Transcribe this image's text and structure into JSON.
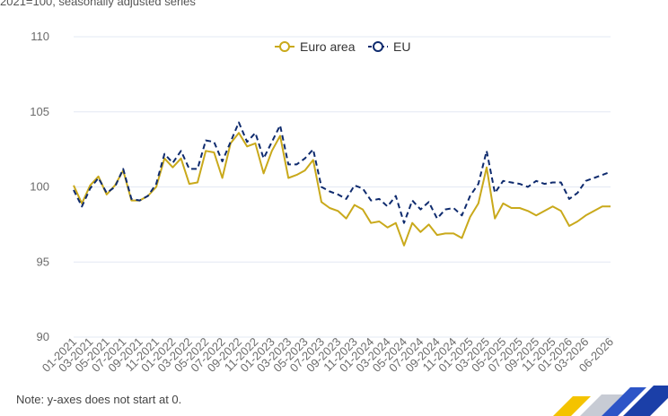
{
  "subtitle": "2021=100, seasonally adjusted series",
  "note": "Note: y-axes does not start at 0.",
  "colors": {
    "euro_area": "#c9a91b",
    "eu": "#0f2b6e",
    "grid": "#e3e8f3"
  },
  "chart_data": {
    "type": "line",
    "title": "",
    "xlabel": "",
    "ylabel": "",
    "ylim": [
      90,
      110
    ],
    "yticks": [
      90,
      95,
      100,
      105,
      110
    ],
    "grid": true,
    "legend_position": "top-center",
    "x": [
      "01-2021",
      "02-2021",
      "03-2021",
      "04-2021",
      "05-2021",
      "06-2021",
      "07-2021",
      "08-2021",
      "09-2021",
      "10-2021",
      "11-2021",
      "12-2021",
      "01-2022",
      "02-2022",
      "03-2022",
      "04-2022",
      "05-2022",
      "06-2022",
      "07-2022",
      "08-2022",
      "09-2022",
      "10-2022",
      "11-2022",
      "12-2022",
      "01-2023",
      "02-2023",
      "03-2023",
      "04-2023",
      "05-2023",
      "06-2023",
      "07-2023",
      "08-2023",
      "09-2023",
      "10-2023",
      "11-2023",
      "12-2023",
      "01-2024",
      "02-2024",
      "03-2024",
      "04-2024",
      "05-2024",
      "06-2024",
      "07-2024",
      "08-2024",
      "09-2024",
      "10-2024",
      "11-2024",
      "12-2024",
      "01-2025",
      "02-2025",
      "03-2025",
      "04-2025",
      "05-2025",
      "06-2025",
      "07-2025",
      "08-2025",
      "09-2025",
      "10-2025",
      "11-2025",
      "12-2025",
      "01-2026",
      "02-2026",
      "03-2026",
      "04-2026",
      "05-2026",
      "06-2026"
    ],
    "xtick_labels": [
      "01-2021",
      "03-2021",
      "05-2021",
      "07-2021",
      "09-2021",
      "11-2021",
      "01-2022",
      "03-2022",
      "05-2022",
      "07-2022",
      "09-2022",
      "11-2022",
      "01-2023",
      "03-2023",
      "05-2023",
      "07-2023",
      "09-2023",
      "11-2023",
      "01-2024",
      "03-2024",
      "05-2024",
      "07-2024",
      "09-2024",
      "11-2024",
      "01-2025",
      "03-2025",
      "05-2025",
      "07-2025",
      "09-2025",
      "11-2025",
      "01-2026",
      "03-2026",
      "06-2026"
    ],
    "series": [
      {
        "name": "Euro area",
        "style": "solid",
        "values": [
          100.1,
          98.9,
          100.1,
          100.7,
          99.5,
          100.1,
          101.1,
          99.1,
          99.1,
          99.4,
          100.0,
          101.9,
          101.3,
          101.9,
          100.2,
          100.3,
          102.4,
          102.3,
          100.6,
          102.9,
          103.6,
          102.7,
          102.9,
          100.9,
          102.4,
          103.4,
          100.6,
          100.8,
          101.1,
          101.8,
          99.0,
          98.6,
          98.4,
          97.9,
          98.8,
          98.5,
          97.6,
          97.7,
          97.3,
          97.6,
          96.1,
          97.6,
          97.0,
          97.5,
          96.8,
          96.9,
          96.9,
          96.6,
          98.0,
          98.9,
          101.3,
          97.9,
          98.9,
          98.6,
          98.6,
          98.4,
          98.1,
          98.4,
          98.7,
          98.4,
          97.4,
          97.7,
          98.1,
          98.4,
          98.7,
          98.7
        ]
      },
      {
        "name": "EU",
        "style": "dashed",
        "values": [
          99.8,
          98.7,
          99.9,
          100.6,
          99.6,
          100.0,
          101.2,
          99.2,
          99.1,
          99.4,
          100.2,
          102.2,
          101.6,
          102.4,
          101.2,
          101.2,
          103.1,
          103.0,
          101.7,
          103.0,
          104.3,
          103.0,
          103.6,
          101.9,
          103.0,
          104.1,
          101.5,
          101.5,
          101.9,
          102.5,
          100.0,
          99.7,
          99.5,
          99.2,
          100.1,
          99.9,
          99.1,
          99.2,
          98.7,
          99.4,
          97.6,
          99.1,
          98.5,
          99.0,
          97.9,
          98.5,
          98.6,
          98.1,
          99.4,
          100.2,
          102.4,
          99.6,
          100.4,
          100.3,
          100.2,
          100.0,
          100.4,
          100.2,
          100.3,
          100.3,
          99.2,
          99.6,
          100.4,
          100.6,
          100.8,
          101.0
        ]
      }
    ]
  }
}
